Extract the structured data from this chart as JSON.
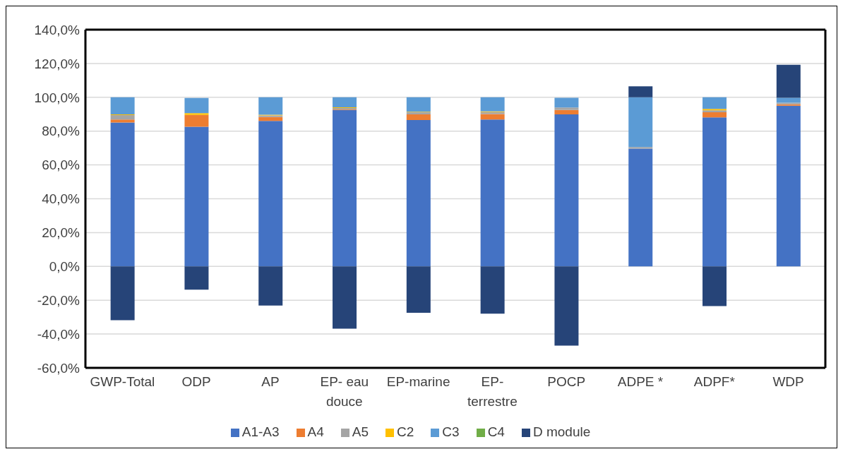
{
  "chart_data": {
    "type": "bar",
    "stacked": true,
    "categories": [
      "GWP-Total",
      "ODP",
      "AP",
      "EP- eau douce",
      "EP-marine",
      "EP- terrestre",
      "POCP",
      "ADPE *",
      "ADPF*",
      "WDP"
    ],
    "series": [
      {
        "name": "A1-A3",
        "color": "#4472c4",
        "values": [
          85.1,
          82.6,
          86.0,
          92.5,
          86.6,
          86.9,
          89.9,
          69.6,
          88.1,
          95.0
        ]
      },
      {
        "name": "A4",
        "color": "#ed7d31",
        "values": [
          1.8,
          7.0,
          2.3,
          0.3,
          3.3,
          3.2,
          2.6,
          0,
          3.0,
          0.8
        ]
      },
      {
        "name": "A5",
        "color": "#a5a5a5",
        "values": [
          2.6,
          null,
          1.0,
          0.9,
          1.2,
          1.2,
          1.5,
          1.0,
          1.2,
          1.0
        ]
      },
      {
        "name": "C2",
        "color": "#ffc000",
        "values": [
          0.4,
          1.0,
          0.4,
          0.4,
          0.4,
          0.4,
          null,
          0,
          0.8,
          null
        ]
      },
      {
        "name": "C3",
        "color": "#5b9bd5",
        "values": [
          10.1,
          9.0,
          10.3,
          5.9,
          8.5,
          8.3,
          5.7,
          29.4,
          6.9,
          2.9
        ]
      },
      {
        "name": "C4",
        "color": "#70ad47",
        "values": [
          0,
          0,
          0,
          0,
          0,
          0,
          0,
          0,
          0,
          0
        ]
      },
      {
        "name": "D module",
        "color": "#264478",
        "values": [
          -31.8,
          -13.8,
          -23.2,
          -36.8,
          -27.4,
          -28.0,
          -46.8,
          6.5,
          -23.5,
          19.5
        ]
      }
    ],
    "ylim": [
      -60,
      140
    ],
    "yticks": [
      {
        "value": -60,
        "label": "-60,0%"
      },
      {
        "value": -40,
        "label": "-40,0%"
      },
      {
        "value": -20,
        "label": "-20,0%"
      },
      {
        "value": 0,
        "label": "0,0%"
      },
      {
        "value": 20,
        "label": "20,0%"
      },
      {
        "value": 40,
        "label": "40,0%"
      },
      {
        "value": 60,
        "label": "60,0%"
      },
      {
        "value": 80,
        "label": "80,0%"
      },
      {
        "value": 100,
        "label": "100,0%"
      },
      {
        "value": 120,
        "label": "120,0%"
      },
      {
        "value": 140,
        "label": "140,0%"
      }
    ],
    "grid": "y",
    "legend": "bottom"
  }
}
